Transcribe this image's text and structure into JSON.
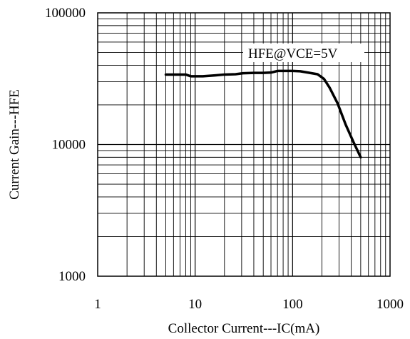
{
  "chart_data": {
    "type": "line",
    "xlabel": "Collector Current---IC(mA)",
    "ylabel": "Current Gain---HFE",
    "x_scale": "log",
    "y_scale": "log",
    "xlim": [
      1,
      1000
    ],
    "ylim": [
      1000,
      100000
    ],
    "x_ticks": [
      "1",
      "10",
      "100",
      "1000"
    ],
    "y_ticks": [
      "1000",
      "10000",
      "100000"
    ],
    "grid": true,
    "legend_position": "top-right",
    "series": [
      {
        "name": "HFE@VCE=5V",
        "color": "#000000",
        "x": [
          5,
          8,
          9,
          12,
          16,
          20,
          26,
          31,
          40,
          50,
          60,
          70,
          85,
          100,
          120,
          150,
          180,
          210,
          240,
          290,
          350,
          420,
          500
        ],
        "y": [
          34000,
          34000,
          33000,
          33000,
          33500,
          34000,
          34200,
          34800,
          35000,
          35000,
          35200,
          36200,
          36200,
          36200,
          36000,
          35000,
          34200,
          31500,
          27000,
          20500,
          14200,
          10500,
          8000
        ]
      }
    ]
  }
}
